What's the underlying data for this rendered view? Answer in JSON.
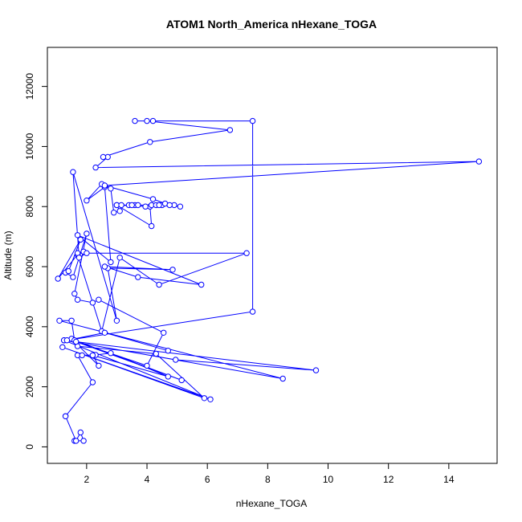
{
  "chart_data": {
    "type": "scatter",
    "title": "ATOM1 North_America nHexane_TOGA",
    "xlabel": "nHexane_TOGA",
    "ylabel": "Altitude (m)",
    "xlim": [
      0.7,
      15.6
    ],
    "ylim": [
      -550,
      13300
    ],
    "x_ticks": [
      2,
      4,
      6,
      8,
      10,
      12,
      14
    ],
    "y_ticks": [
      0,
      2000,
      4000,
      6000,
      8000,
      10000,
      12000
    ],
    "marker": "open-circle",
    "connected": true,
    "series_color": "#0000ff",
    "grid": false,
    "legend": "none",
    "points": [
      [
        1.6,
        200
      ],
      [
        1.9,
        200
      ],
      [
        1.8,
        480
      ],
      [
        1.65,
        200
      ],
      [
        1.3,
        1020
      ],
      [
        1.3,
        1020
      ],
      [
        2.2,
        2150
      ],
      [
        1.7,
        3050
      ],
      [
        1.85,
        3050
      ],
      [
        2.3,
        3060
      ],
      [
        2.8,
        3120
      ],
      [
        4.7,
        2340
      ],
      [
        2.2,
        3050
      ],
      [
        2.4,
        2700
      ],
      [
        1.5,
        3600
      ],
      [
        1.7,
        3350
      ],
      [
        4.3,
        3100
      ],
      [
        5.9,
        1620
      ],
      [
        1.2,
        3320
      ],
      [
        6.1,
        1580
      ],
      [
        1.25,
        3550
      ],
      [
        4.95,
        2900
      ],
      [
        9.6,
        2550
      ],
      [
        1.25,
        3550
      ],
      [
        8.5,
        2270
      ],
      [
        1.1,
        4200
      ],
      [
        1.5,
        4200
      ],
      [
        1.6,
        3550
      ],
      [
        5.15,
        2220
      ],
      [
        1.65,
        3500
      ],
      [
        4.0,
        2700
      ],
      [
        4.55,
        3800
      ],
      [
        2.4,
        4900
      ],
      [
        2.2,
        4800
      ],
      [
        1.7,
        4900
      ],
      [
        1.6,
        5100
      ],
      [
        2.0,
        7100
      ],
      [
        1.55,
        5650
      ],
      [
        1.3,
        5800
      ],
      [
        1.4,
        5850
      ],
      [
        1.8,
        6900
      ],
      [
        1.05,
        5600
      ],
      [
        1.7,
        6400
      ],
      [
        2.5,
        3850
      ],
      [
        3.1,
        6300
      ],
      [
        4.4,
        5400
      ],
      [
        7.3,
        6450
      ],
      [
        1.7,
        6450
      ],
      [
        1.9,
        6500
      ],
      [
        2.0,
        6450
      ],
      [
        1.75,
        6300
      ],
      [
        1.55,
        9150
      ],
      [
        3.0,
        4200
      ],
      [
        2.7,
        5950
      ],
      [
        4.85,
        5900
      ],
      [
        2.6,
        6000
      ],
      [
        3.7,
        5650
      ],
      [
        5.8,
        5400
      ],
      [
        1.7,
        7050
      ],
      [
        2.8,
        6150
      ],
      [
        2.6,
        8650
      ],
      [
        2.0,
        8200
      ],
      [
        2.5,
        8750
      ],
      [
        2.8,
        8600
      ],
      [
        2.9,
        7800
      ],
      [
        3.1,
        7850
      ],
      [
        3.0,
        8050
      ],
      [
        4.15,
        7350
      ],
      [
        4.1,
        8000
      ],
      [
        3.0,
        8050
      ],
      [
        3.15,
        8050
      ],
      [
        3.6,
        8050
      ],
      [
        3.7,
        8050
      ],
      [
        3.4,
        8050
      ],
      [
        4.15,
        8050
      ],
      [
        3.5,
        8050
      ],
      [
        3.95,
        8000
      ],
      [
        4.3,
        8050
      ],
      [
        4.5,
        8050
      ],
      [
        4.6,
        8100
      ],
      [
        4.9,
        8050
      ],
      [
        4.4,
        8050
      ],
      [
        5.1,
        8000
      ],
      [
        4.75,
        8050
      ],
      [
        4.2,
        8250
      ],
      [
        2.6,
        8700
      ],
      [
        15.0,
        9500
      ],
      [
        2.3,
        9300
      ],
      [
        2.7,
        9650
      ],
      [
        2.55,
        9650
      ],
      [
        4.1,
        10150
      ],
      [
        6.75,
        10550
      ],
      [
        4.0,
        10850
      ],
      [
        3.6,
        10850
      ],
      [
        4.2,
        10850
      ],
      [
        7.5,
        10850
      ],
      [
        7.5,
        4500
      ],
      [
        1.35,
        3550
      ],
      [
        2.6,
        3800
      ],
      [
        4.7,
        3200
      ]
    ]
  }
}
